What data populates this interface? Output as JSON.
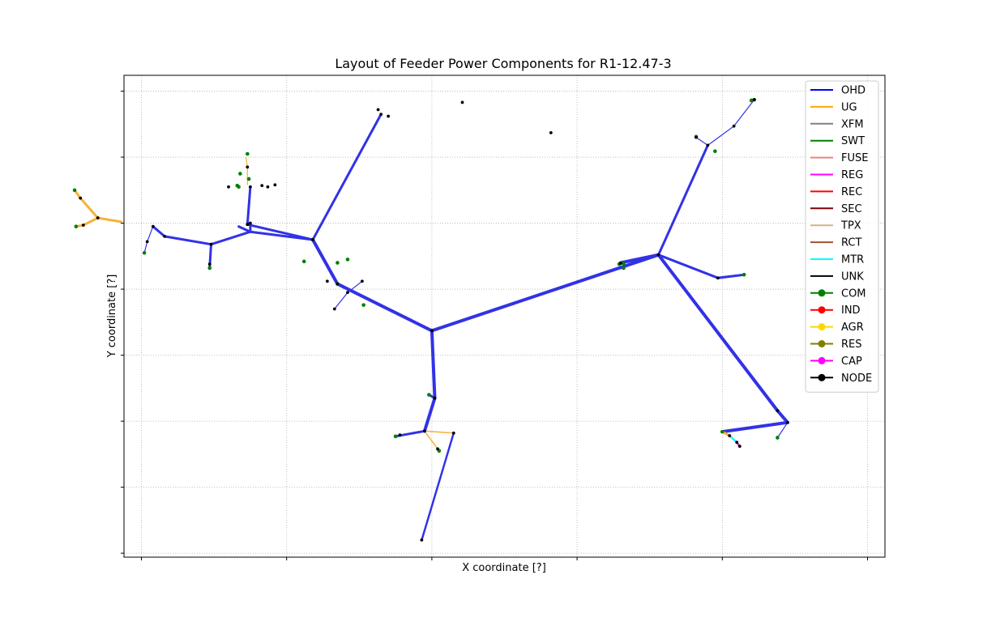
{
  "chart_data": {
    "type": "line",
    "title": "Layout of Feeder Power Components for R1-12.47-3",
    "xlabel": "X coordinate [?]",
    "ylabel": "Y coordinate [?]",
    "xlim": [
      -0.12,
      5.12
    ],
    "ylim": [
      -0.06,
      7.24
    ],
    "x_ticks": [
      0,
      1,
      2,
      3,
      4,
      5
    ],
    "y_ticks": [
      0,
      1,
      2,
      3,
      4,
      5,
      6,
      7
    ],
    "tick_labels_shown": false,
    "grid": true,
    "legend_position": "upper right",
    "legend": [
      {
        "label": "OHD",
        "color": "#0000ff",
        "marker": false
      },
      {
        "label": "UG",
        "color": "#ffa500",
        "marker": false
      },
      {
        "label": "XFM",
        "color": "#808080",
        "marker": false
      },
      {
        "label": "SWT",
        "color": "#008000",
        "marker": false
      },
      {
        "label": "FUSE",
        "color": "#f08080",
        "marker": false
      },
      {
        "label": "REG",
        "color": "#ff00ff",
        "marker": false
      },
      {
        "label": "REC",
        "color": "#ff0000",
        "marker": false
      },
      {
        "label": "SEC",
        "color": "#800000",
        "marker": false
      },
      {
        "label": "TPX",
        "color": "#d2b48c",
        "marker": false
      },
      {
        "label": "RCT",
        "color": "#a0522d",
        "marker": false
      },
      {
        "label": "MTR",
        "color": "#00ffff",
        "marker": false
      },
      {
        "label": "UNK",
        "color": "#000000",
        "marker": false
      },
      {
        "label": "COM",
        "color": "#008000",
        "marker": true
      },
      {
        "label": "IND",
        "color": "#ff0000",
        "marker": true
      },
      {
        "label": "AGR",
        "color": "#ffd700",
        "marker": true
      },
      {
        "label": "RES",
        "color": "#808000",
        "marker": true
      },
      {
        "label": "CAP",
        "color": "#ff00ff",
        "marker": true
      },
      {
        "label": "NODE",
        "color": "#000000",
        "marker": true
      }
    ],
    "segment_colors": {
      "OHD": "#3232e6",
      "UG": "#f6b236",
      "MTR": "#00ffff",
      "CAP": "#ff00ff"
    },
    "segments": [
      {
        "kind": "OHD",
        "width": 4,
        "points": [
          [
            2.0,
            3.37
          ],
          [
            3.56,
            4.52
          ]
        ]
      },
      {
        "kind": "OHD",
        "width": 4,
        "points": [
          [
            3.56,
            4.52
          ],
          [
            3.3,
            4.4
          ]
        ]
      },
      {
        "kind": "OHD",
        "width": 3,
        "points": [
          [
            3.56,
            4.52
          ],
          [
            3.9,
            6.18
          ]
        ]
      },
      {
        "kind": "OHD",
        "width": 1.2,
        "points": [
          [
            3.9,
            6.18
          ],
          [
            4.08,
            6.47
          ],
          [
            4.22,
            6.87
          ]
        ]
      },
      {
        "kind": "OHD",
        "width": 1.2,
        "points": [
          [
            3.9,
            6.18
          ],
          [
            3.82,
            6.3
          ]
        ]
      },
      {
        "kind": "OHD",
        "width": 3,
        "points": [
          [
            3.56,
            4.52
          ],
          [
            3.97,
            4.17
          ],
          [
            4.15,
            4.22
          ]
        ]
      },
      {
        "kind": "OHD",
        "width": 4,
        "points": [
          [
            3.56,
            4.52
          ],
          [
            4.38,
            2.16
          ],
          [
            4.45,
            1.98
          ],
          [
            4.0,
            1.84
          ]
        ]
      },
      {
        "kind": "OHD",
        "width": 1.2,
        "points": [
          [
            4.45,
            1.98
          ],
          [
            4.38,
            1.75
          ]
        ]
      },
      {
        "kind": "UG",
        "width": 3,
        "points": [
          [
            4.0,
            1.84
          ],
          [
            4.05,
            1.78
          ]
        ]
      },
      {
        "kind": "MTR",
        "width": 2.5,
        "points": [
          [
            4.05,
            1.78
          ],
          [
            4.1,
            1.68
          ]
        ]
      },
      {
        "kind": "CAP",
        "width": 2.5,
        "points": [
          [
            4.1,
            1.68
          ],
          [
            4.12,
            1.62
          ]
        ]
      },
      {
        "kind": "OHD",
        "width": 4,
        "points": [
          [
            2.0,
            3.37
          ],
          [
            2.02,
            2.35
          ],
          [
            1.95,
            1.85
          ]
        ]
      },
      {
        "kind": "OHD",
        "width": 3,
        "points": [
          [
            1.95,
            1.85
          ],
          [
            1.75,
            1.77
          ]
        ]
      },
      {
        "kind": "OHD",
        "width": 3,
        "points": [
          [
            2.02,
            2.35
          ],
          [
            1.98,
            2.4
          ]
        ]
      },
      {
        "kind": "UG",
        "width": 1.5,
        "points": [
          [
            1.95,
            1.85
          ],
          [
            2.15,
            1.82
          ]
        ]
      },
      {
        "kind": "UG",
        "width": 1.5,
        "points": [
          [
            1.95,
            1.85
          ],
          [
            2.05,
            1.55
          ]
        ]
      },
      {
        "kind": "OHD",
        "width": 2.5,
        "points": [
          [
            2.15,
            1.82
          ],
          [
            1.93,
            0.2
          ]
        ]
      },
      {
        "kind": "OHD",
        "width": 4,
        "points": [
          [
            2.0,
            3.37
          ],
          [
            1.35,
            4.08
          ],
          [
            1.18,
            4.75
          ]
        ]
      },
      {
        "kind": "OHD",
        "width": 3,
        "points": [
          [
            1.18,
            4.75
          ],
          [
            1.65,
            6.65
          ]
        ]
      },
      {
        "kind": "OHD",
        "width": 3,
        "points": [
          [
            1.18,
            4.75
          ],
          [
            0.73,
            4.98
          ],
          [
            0.75,
            5.55
          ]
        ]
      },
      {
        "kind": "OHD",
        "width": 1.2,
        "points": [
          [
            1.52,
            4.12
          ],
          [
            1.42,
            3.95
          ]
        ]
      },
      {
        "kind": "OHD",
        "width": 1.2,
        "points": [
          [
            1.42,
            3.95
          ],
          [
            1.33,
            3.7
          ]
        ]
      },
      {
        "kind": "OHD",
        "width": 3,
        "points": [
          [
            1.18,
            4.75
          ],
          [
            0.75,
            4.87
          ],
          [
            0.75,
            5.0
          ]
        ]
      },
      {
        "kind": "UG",
        "width": 1.2,
        "points": [
          [
            0.73,
            5.58
          ],
          [
            0.73,
            5.85
          ],
          [
            0.72,
            6.0
          ]
        ]
      },
      {
        "kind": "OHD",
        "width": 3,
        "points": [
          [
            0.75,
            4.87
          ],
          [
            0.67,
            4.95
          ]
        ]
      },
      {
        "kind": "OHD",
        "width": 3,
        "points": [
          [
            0.75,
            4.87
          ],
          [
            0.48,
            4.68
          ],
          [
            0.47,
            4.32
          ]
        ]
      },
      {
        "kind": "OHD",
        "width": 3,
        "points": [
          [
            0.48,
            4.68
          ],
          [
            0.16,
            4.8
          ],
          [
            0.08,
            4.95
          ]
        ]
      },
      {
        "kind": "OHD",
        "width": 1.2,
        "points": [
          [
            0.08,
            4.95
          ],
          [
            0.04,
            4.72
          ]
        ]
      },
      {
        "kind": "OHD",
        "width": 1.2,
        "points": [
          [
            0.04,
            4.72
          ],
          [
            0.02,
            4.55
          ]
        ]
      },
      {
        "kind": "UG",
        "width": 3,
        "points": [
          [
            -0.14,
            5.02
          ],
          [
            -0.3,
            5.08
          ],
          [
            -0.42,
            5.38
          ],
          [
            -0.46,
            5.5
          ]
        ]
      },
      {
        "kind": "UG",
        "width": 3,
        "points": [
          [
            -0.3,
            5.08
          ],
          [
            -0.4,
            4.97
          ],
          [
            -0.45,
            4.95
          ]
        ]
      }
    ],
    "nodes_com": [
      [
        3.32,
        4.39
      ],
      [
        3.29,
        4.38
      ],
      [
        3.32,
        4.32
      ],
      [
        3.82,
        6.31
      ],
      [
        3.95,
        6.09
      ],
      [
        4.22,
        6.87
      ],
      [
        4.2,
        6.86
      ],
      [
        4.15,
        4.22
      ],
      [
        4.38,
        1.75
      ],
      [
        4.0,
        1.84
      ],
      [
        1.75,
        1.77
      ],
      [
        1.98,
        2.4
      ],
      [
        2.05,
        1.55
      ],
      [
        1.18,
        4.75
      ],
      [
        1.35,
        4.08
      ],
      [
        1.12,
        4.42
      ],
      [
        0.73,
        6.05
      ],
      [
        0.74,
        5.67
      ],
      [
        0.67,
        5.55
      ],
      [
        0.47,
        4.32
      ],
      [
        0.02,
        4.55
      ],
      [
        -0.46,
        5.5
      ],
      [
        -0.45,
        4.95
      ],
      [
        1.42,
        4.45
      ],
      [
        1.35,
        4.4
      ],
      [
        1.53,
        3.76
      ],
      [
        0.68,
        5.75
      ],
      [
        0.66,
        5.57
      ]
    ],
    "nodes_black": [
      [
        2.0,
        3.37
      ],
      [
        3.56,
        4.52
      ],
      [
        3.3,
        4.39
      ],
      [
        3.9,
        6.18
      ],
      [
        4.08,
        6.47
      ],
      [
        4.22,
        6.87
      ],
      [
        3.82,
        6.3
      ],
      [
        3.97,
        4.17
      ],
      [
        4.38,
        2.16
      ],
      [
        4.45,
        1.98
      ],
      [
        4.05,
        1.78
      ],
      [
        4.1,
        1.68
      ],
      [
        4.12,
        1.62
      ],
      [
        2.02,
        2.35
      ],
      [
        1.95,
        1.85
      ],
      [
        2.15,
        1.82
      ],
      [
        1.93,
        0.2
      ],
      [
        1.78,
        1.79
      ],
      [
        2.04,
        1.58
      ],
      [
        1.35,
        4.08
      ],
      [
        1.18,
        4.75
      ],
      [
        1.65,
        6.65
      ],
      [
        1.63,
        6.72
      ],
      [
        1.7,
        6.62
      ],
      [
        1.52,
        4.12
      ],
      [
        1.42,
        3.95
      ],
      [
        1.33,
        3.7
      ],
      [
        0.75,
        5.55
      ],
      [
        0.73,
        5.85
      ],
      [
        0.73,
        4.98
      ],
      [
        0.48,
        4.68
      ],
      [
        0.16,
        4.8
      ],
      [
        0.08,
        4.95
      ],
      [
        0.04,
        4.72
      ],
      [
        0.75,
        5.0
      ],
      [
        0.47,
        4.38
      ],
      [
        -0.3,
        5.08
      ],
      [
        -0.42,
        5.38
      ],
      [
        -0.4,
        4.97
      ],
      [
        0.6,
        5.55
      ],
      [
        0.87,
        5.55
      ],
      [
        0.83,
        5.57
      ],
      [
        0.92,
        5.58
      ],
      [
        1.28,
        4.12
      ],
      [
        2.21,
        6.83
      ],
      [
        2.82,
        6.37
      ]
    ]
  }
}
